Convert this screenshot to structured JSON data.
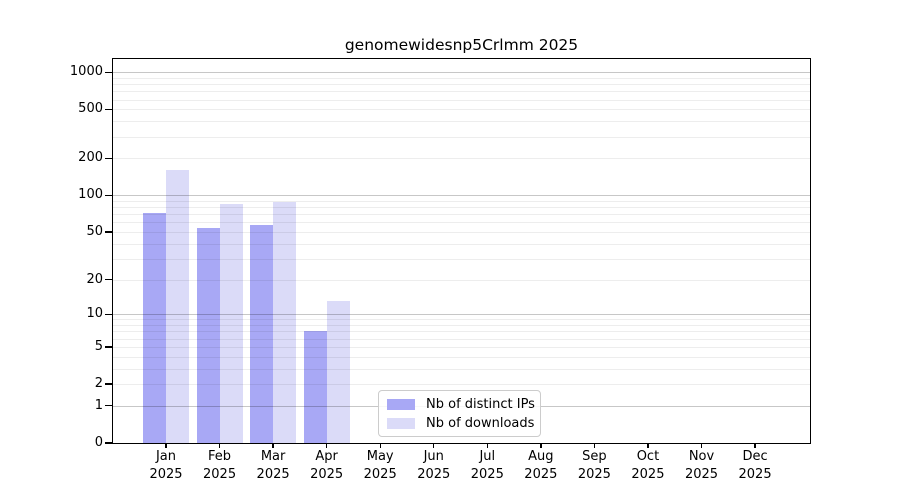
{
  "chart_data": {
    "type": "bar",
    "title": "genomewidesnp5Crlmm 2025",
    "categories": [
      "Jan",
      "Feb",
      "Mar",
      "Apr",
      "May",
      "Jun",
      "Jul",
      "Aug",
      "Sep",
      "Oct",
      "Nov",
      "Dec"
    ],
    "x_tick_year": "2025",
    "series": [
      {
        "name": "Nb of distinct IPs",
        "color": "#a8a8f5",
        "values": [
          72,
          54,
          57,
          7,
          0,
          0,
          0,
          0,
          0,
          0,
          0,
          0
        ]
      },
      {
        "name": "Nb of downloads",
        "color": "#dbdbf8",
        "values": [
          162,
          85,
          88,
          13,
          0,
          0,
          0,
          0,
          0,
          0,
          0,
          0
        ]
      }
    ],
    "y_axis": {
      "scale": "log1p",
      "ticks": [
        0,
        1,
        2,
        5,
        10,
        20,
        50,
        100,
        200,
        500,
        1000
      ],
      "major_gridlines": [
        1,
        10,
        100,
        1000
      ],
      "max": 1280
    },
    "grid": "on, minor and major horizontal lines drawn over bars",
    "legend_position": "lower center"
  },
  "colors": {
    "bar_distinct_ips": "#a8a8f5",
    "bar_downloads": "#dbdbf8",
    "axis_spine": "#000000",
    "background": "#ffffff",
    "legend_border": "#cccccc"
  }
}
